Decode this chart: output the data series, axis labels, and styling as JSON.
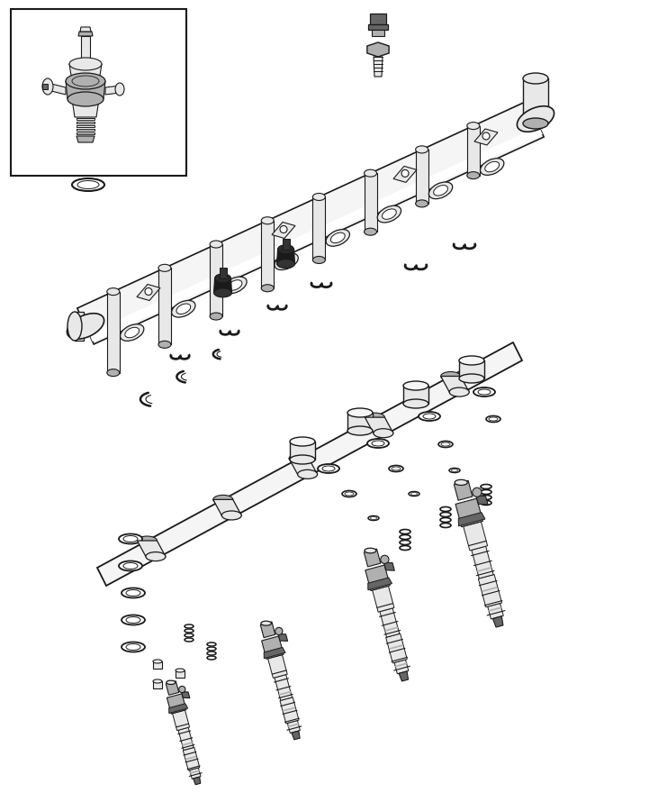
{
  "background_color": "#ffffff",
  "line_color": "#000000",
  "fig_width": 7.41,
  "fig_height": 9.0,
  "dpi": 100,
  "lc": "#1a1a1a",
  "light_gray": "#e8e8e8",
  "mid_gray": "#b0b0b0",
  "dark_gray": "#666666",
  "very_light": "#f5f5f5"
}
